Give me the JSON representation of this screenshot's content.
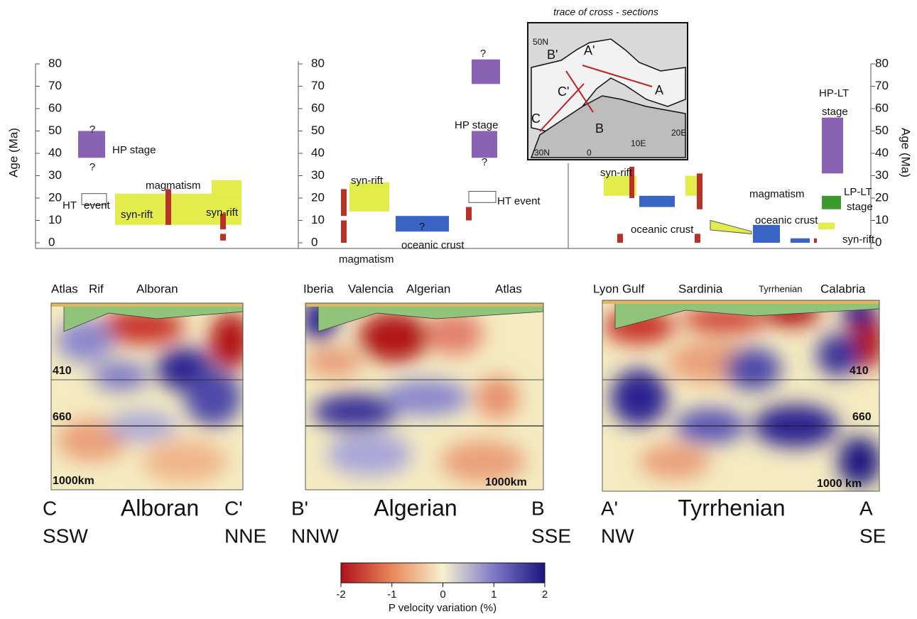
{
  "inset": {
    "title": "trace of cross - sections",
    "labels": [
      "50N",
      "B'",
      "A'",
      "A",
      "C'",
      "C",
      "B",
      "30N",
      "0",
      "10E",
      "20E"
    ]
  },
  "age_axis": {
    "label": "Age (Ma)",
    "ylim": [
      0,
      80
    ],
    "yticks": [
      0,
      10,
      20,
      30,
      40,
      50,
      60,
      70,
      80
    ]
  },
  "timelines": [
    {
      "labels": [
        "?",
        "?",
        "HP stage",
        "HT",
        "event",
        "magmatism",
        "syn-rift",
        "syn-rift"
      ],
      "boxes": [
        {
          "from": 38,
          "to": 50,
          "color": "#8a62b3"
        },
        {
          "from": 8,
          "to": 22,
          "color": "#e2ec4a"
        },
        {
          "from": 22,
          "to": 28,
          "color": "#e2ec4a"
        },
        {
          "from": 8,
          "to": 24,
          "color": "#b8322a"
        },
        {
          "from": 6,
          "to": 13,
          "color": "#b8322a"
        },
        {
          "from": 1,
          "to": 4,
          "color": "#b8322a"
        },
        {
          "from": 17,
          "to": 22,
          "color": "#ffffff"
        }
      ]
    },
    {
      "labels": [
        "syn-rift",
        "magmatism",
        "?",
        "oceanic crust",
        "HT event",
        "HP stage",
        "?",
        "?"
      ],
      "boxes": [
        {
          "from": 14,
          "to": 27,
          "color": "#e2ec4a"
        },
        {
          "from": 12,
          "to": 24,
          "color": "#b8322a"
        },
        {
          "from": 0,
          "to": 10,
          "color": "#b8322a"
        },
        {
          "from": 5,
          "to": 12,
          "color": "#3a64c4"
        },
        {
          "from": 10,
          "to": 16,
          "color": "#b8322a"
        },
        {
          "from": 18,
          "to": 23,
          "color": "#ffffff"
        },
        {
          "from": 38,
          "to": 50,
          "color": "#8a62b3"
        },
        {
          "from": 71,
          "to": 82,
          "color": "#8a62b3"
        }
      ]
    },
    {
      "labels": [
        "syn-rift",
        "oceanic crust",
        "magmatism",
        "oceanic crust",
        "HP-LT",
        "stage",
        "LP-LT",
        "stage",
        "syn-rift"
      ],
      "boxes": [
        {
          "from": 21,
          "to": 30,
          "color": "#e2ec4a"
        },
        {
          "from": 20,
          "to": 34,
          "color": "#b8322a"
        },
        {
          "from": 16,
          "to": 21,
          "color": "#3a64c4"
        },
        {
          "from": 21,
          "to": 30,
          "color": "#e2ec4a"
        },
        {
          "from": 15,
          "to": 31,
          "color": "#b8322a"
        },
        {
          "from": 4,
          "to": 10,
          "color": "#e2ec4a"
        },
        {
          "from": 0,
          "to": 8,
          "color": "#3a64c4"
        },
        {
          "from": 0,
          "to": 2,
          "color": "#3a64c4"
        },
        {
          "from": 0,
          "to": 4,
          "color": "#b8322a"
        },
        {
          "from": 0,
          "to": 4,
          "color": "#b8322a"
        },
        {
          "from": 31,
          "to": 56,
          "color": "#8a62b3"
        },
        {
          "from": 15,
          "to": 21,
          "color": "#3d9a2e"
        },
        {
          "from": 6,
          "to": 9,
          "color": "#e2ec4a"
        },
        {
          "from": 0,
          "to": 2,
          "color": "#b8322a"
        }
      ]
    }
  ],
  "sections": [
    {
      "top_labels": [
        "Atlas",
        "Rif",
        "Alboran"
      ],
      "depth_labels": [
        "410",
        "660",
        "1000km"
      ],
      "ends": [
        "C",
        "C'"
      ],
      "name": "Alboran",
      "directions": [
        "SSW",
        "NNE"
      ]
    },
    {
      "top_labels": [
        "Iberia",
        "Valencia",
        "Algerian",
        "Atlas"
      ],
      "depth_labels": [
        "1000km"
      ],
      "ends": [
        "B'",
        "B"
      ],
      "name": "Algerian",
      "directions": [
        "NNW",
        "SSE"
      ]
    },
    {
      "top_labels": [
        "Lyon Gulf",
        "Sardinia",
        "Tyrrhenian",
        "Calabria"
      ],
      "depth_labels": [
        "410",
        "660",
        "1000 km"
      ],
      "ends": [
        "A'",
        "A"
      ],
      "name": "Tyrrhenian",
      "directions": [
        "NW",
        "SE"
      ]
    }
  ],
  "colorbar": {
    "label": "P velocity variation (%)",
    "lim": [
      -2,
      2
    ],
    "ticks": [
      -2,
      -1,
      0,
      1,
      2
    ]
  }
}
